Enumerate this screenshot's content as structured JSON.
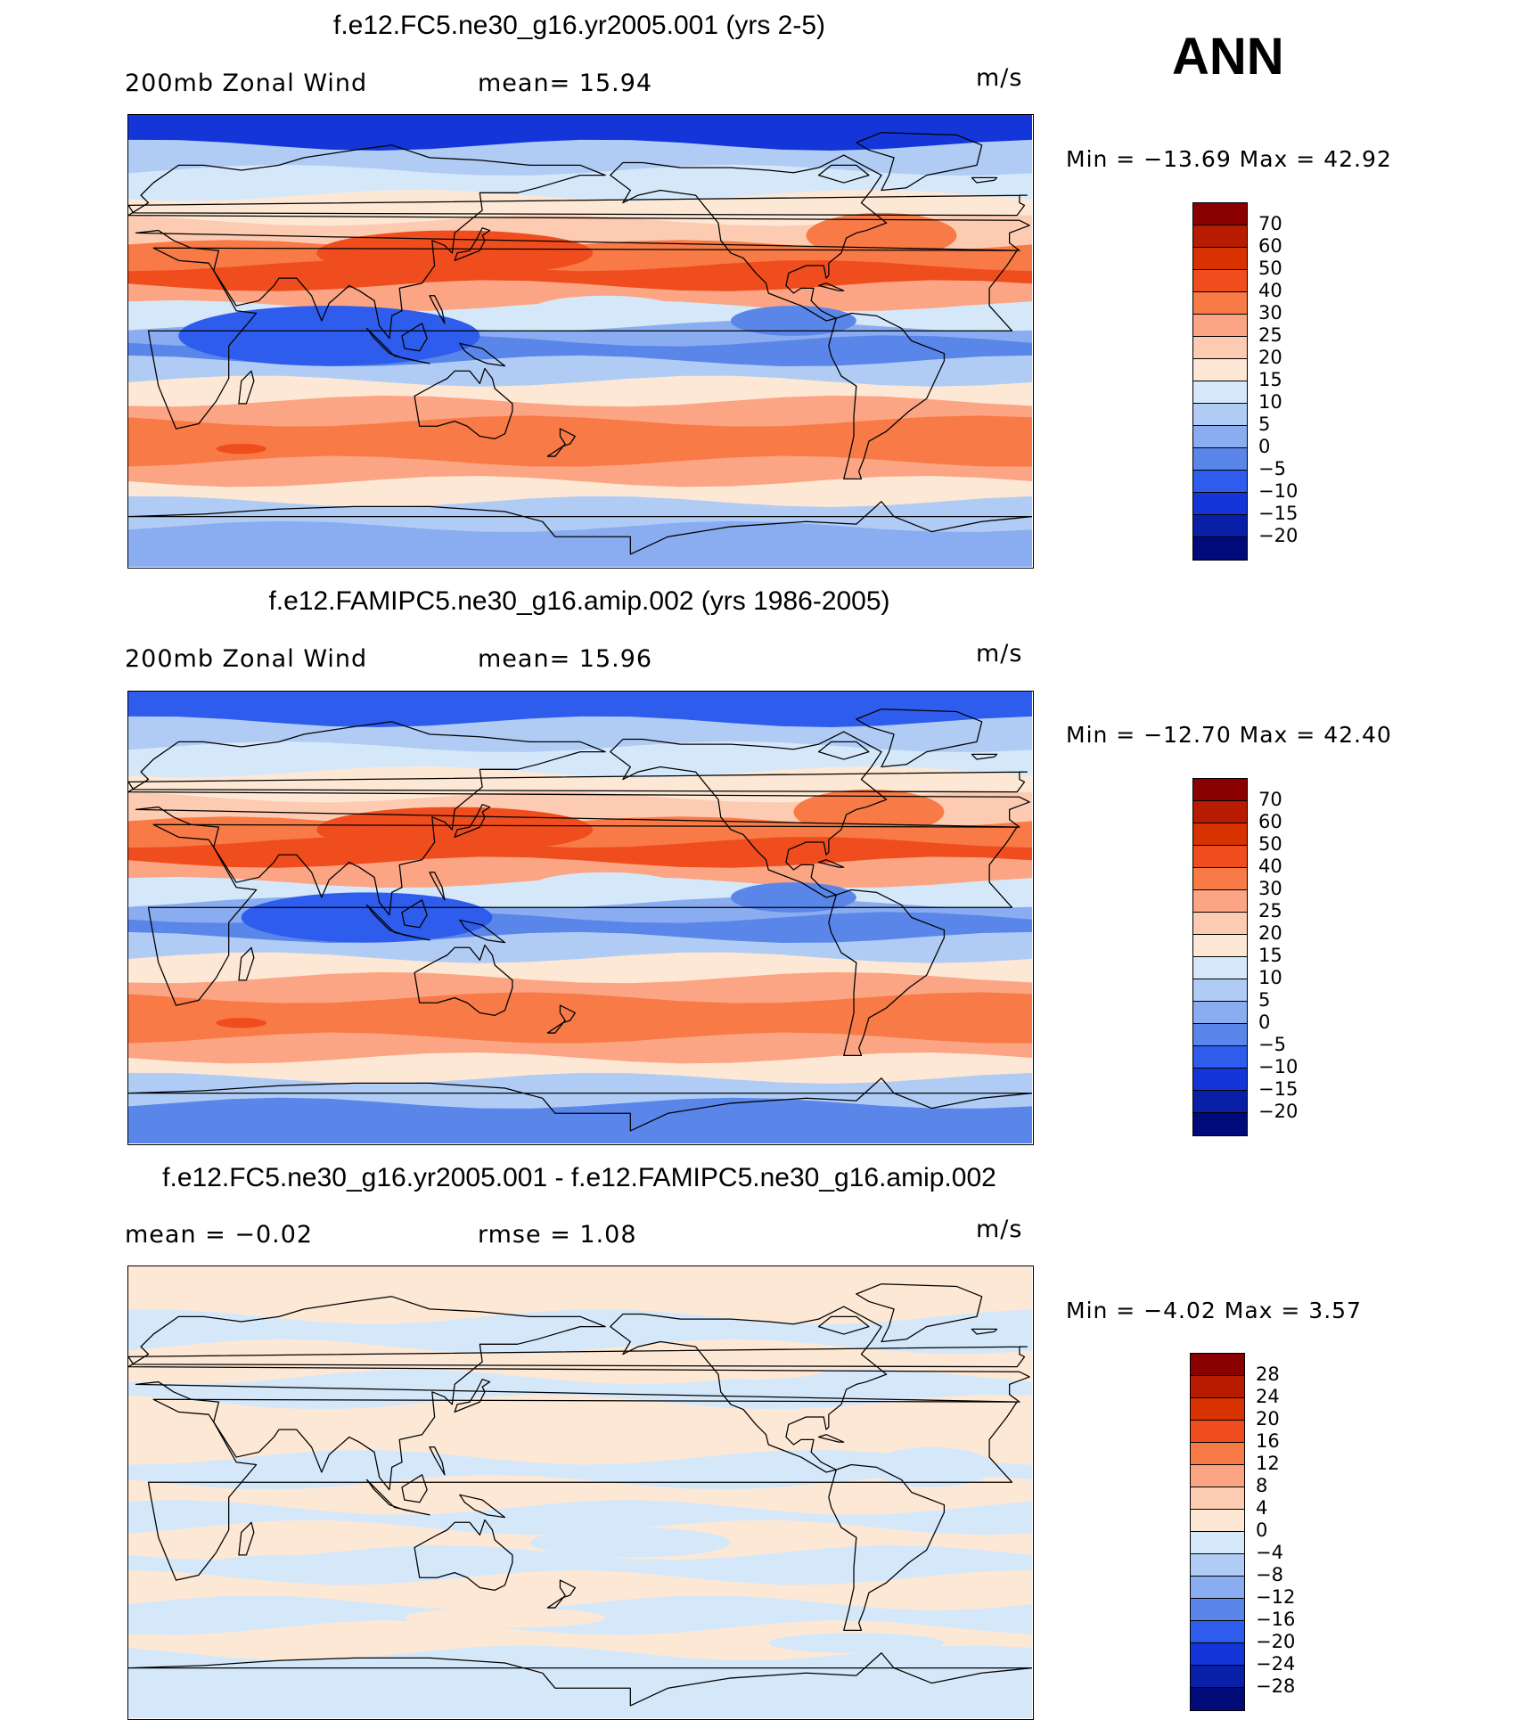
{
  "season": "ANN",
  "units": "m/s",
  "panels": [
    {
      "title": "f.e12.FC5.ne30_g16.yr2005.001 (yrs 2-5)",
      "left_text": "200mb Zonal Wind",
      "mid_text": "mean=   15.94",
      "minmax": "Min  =  −13.69  Max  =    42.92",
      "zones": [
        {
          "lat": 90,
          "t": 0
        },
        {
          "lat": 78,
          "t": 4
        },
        {
          "lat": 68,
          "t": 5
        },
        {
          "lat": 58,
          "t": 6
        },
        {
          "lat": 48,
          "t": 7
        },
        {
          "lat": 38,
          "t": 9
        },
        {
          "lat": 30,
          "t": 10
        },
        {
          "lat": 22,
          "t": 8
        },
        {
          "lat": 14,
          "t": 5
        },
        {
          "lat": 6,
          "t": 3
        },
        {
          "lat": 0,
          "t": 2
        },
        {
          "lat": -8,
          "t": 4
        },
        {
          "lat": -16,
          "t": 6
        },
        {
          "lat": -24,
          "t": 8
        },
        {
          "lat": -32,
          "t": 9
        },
        {
          "lat": -40,
          "t": 9
        },
        {
          "lat": -48,
          "t": 8
        },
        {
          "lat": -56,
          "t": 6
        },
        {
          "lat": -64,
          "t": 4
        },
        {
          "lat": -74,
          "t": 3
        },
        {
          "lat": -90,
          "t": 4
        }
      ],
      "anomalies": [
        {
          "lon": 130,
          "lat": 35,
          "rx": 55,
          "ry": 9,
          "t": 10
        },
        {
          "lon": 300,
          "lat": 42,
          "rx": 30,
          "ry": 9,
          "t": 9
        },
        {
          "lon": 80,
          "lat": 2,
          "rx": 60,
          "ry": 12,
          "t": 1
        },
        {
          "lon": 265,
          "lat": 8,
          "rx": 25,
          "ry": 6,
          "t": 2
        },
        {
          "lon": 45,
          "lat": -43,
          "rx": 10,
          "ry": 2,
          "t": 10
        },
        {
          "lon": 190,
          "lat": 12,
          "rx": 30,
          "ry": 6,
          "t": 5
        }
      ],
      "colorbar_labels": [
        "70",
        "60",
        "50",
        "40",
        "30",
        "25",
        "20",
        "15",
        "10",
        "5",
        "0",
        "−5",
        "−10",
        "−15",
        "−20"
      ],
      "colorbar_colors": [
        "#8b0000",
        "#b71c00",
        "#d83200",
        "#f04d1e",
        "#f87a46",
        "#fba584",
        "#fdcbb2",
        "#fde8d5",
        "#d5e8fa",
        "#b0ccf5",
        "#8aacf0",
        "#5a86ea",
        "#2e5cec",
        "#1436d8",
        "#0a1fa8",
        "#000b79"
      ]
    },
    {
      "title": "f.e12.FAMIPC5.ne30_g16.amip.002 (yrs 1986-2005)",
      "left_text": "200mb Zonal Wind",
      "mid_text": "mean=   15.96",
      "minmax": "Min  =  −12.70  Max  =    42.40",
      "zones": [
        {
          "lat": 90,
          "t": 1
        },
        {
          "lat": 78,
          "t": 4
        },
        {
          "lat": 68,
          "t": 5
        },
        {
          "lat": 58,
          "t": 6
        },
        {
          "lat": 48,
          "t": 7
        },
        {
          "lat": 38,
          "t": 9
        },
        {
          "lat": 30,
          "t": 10
        },
        {
          "lat": 22,
          "t": 8
        },
        {
          "lat": 14,
          "t": 5
        },
        {
          "lat": 6,
          "t": 3
        },
        {
          "lat": 0,
          "t": 2
        },
        {
          "lat": -8,
          "t": 4
        },
        {
          "lat": -16,
          "t": 6
        },
        {
          "lat": -24,
          "t": 8
        },
        {
          "lat": -32,
          "t": 9
        },
        {
          "lat": -40,
          "t": 9
        },
        {
          "lat": -48,
          "t": 8
        },
        {
          "lat": -56,
          "t": 6
        },
        {
          "lat": -64,
          "t": 4
        },
        {
          "lat": -74,
          "t": 2
        },
        {
          "lat": -90,
          "t": 3
        }
      ],
      "anomalies": [
        {
          "lon": 130,
          "lat": 35,
          "rx": 55,
          "ry": 9,
          "t": 10
        },
        {
          "lon": 295,
          "lat": 42,
          "rx": 30,
          "ry": 9,
          "t": 9
        },
        {
          "lon": 95,
          "lat": 0,
          "rx": 50,
          "ry": 10,
          "t": 1
        },
        {
          "lon": 265,
          "lat": 8,
          "rx": 25,
          "ry": 6,
          "t": 2
        },
        {
          "lon": 45,
          "lat": -42,
          "rx": 10,
          "ry": 2,
          "t": 10
        },
        {
          "lon": 190,
          "lat": 12,
          "rx": 30,
          "ry": 6,
          "t": 5
        }
      ],
      "colorbar_labels": [
        "70",
        "60",
        "50",
        "40",
        "30",
        "25",
        "20",
        "15",
        "10",
        "5",
        "0",
        "−5",
        "−10",
        "−15",
        "−20"
      ],
      "colorbar_colors": [
        "#8b0000",
        "#b71c00",
        "#d83200",
        "#f04d1e",
        "#f87a46",
        "#fba584",
        "#fdcbb2",
        "#fde8d5",
        "#d5e8fa",
        "#b0ccf5",
        "#8aacf0",
        "#5a86ea",
        "#2e5cec",
        "#1436d8",
        "#0a1fa8",
        "#000b79"
      ]
    },
    {
      "title": "f.e12.FC5.ne30_g16.yr2005.001 - f.e12.FAMIPC5.ne30_g16.amip.002",
      "left_text": "mean  =    −0.02",
      "mid_text": "rmse  =      1.08",
      "minmax": "Min  =    −4.02  Max  =      3.57",
      "zones": [
        {
          "lat": 90,
          "t": 1
        },
        {
          "lat": 70,
          "t": 0
        },
        {
          "lat": 58,
          "t": 1
        },
        {
          "lat": 46,
          "t": 0
        },
        {
          "lat": 36,
          "t": 1
        },
        {
          "lat": 24,
          "t": 1
        },
        {
          "lat": 14,
          "t": 0
        },
        {
          "lat": 4,
          "t": 1
        },
        {
          "lat": -6,
          "t": 0
        },
        {
          "lat": -14,
          "t": 1
        },
        {
          "lat": -24,
          "t": 0
        },
        {
          "lat": -34,
          "t": 1
        },
        {
          "lat": -44,
          "t": 0
        },
        {
          "lat": -54,
          "t": 1
        },
        {
          "lat": -64,
          "t": 0
        },
        {
          "lat": -90,
          "t": 1
        }
      ],
      "anomalies": [],
      "colorbar_labels": [
        "28",
        "24",
        "20",
        "16",
        "12",
        "8",
        "4",
        "0",
        "−4",
        "−8",
        "−12",
        "−16",
        "−20",
        "−24",
        "−28"
      ],
      "colorbar_colors": [
        "#8b0000",
        "#b71c00",
        "#d83200",
        "#f04d1e",
        "#f87a46",
        "#fba584",
        "#fdcbb2",
        "#fde8d5",
        "#d5e8fa",
        "#b0ccf5",
        "#8aacf0",
        "#5a86ea",
        "#2e5cec",
        "#1436d8",
        "#0a1fa8",
        "#000b79"
      ]
    }
  ],
  "field_palette": [
    "#1436d8",
    "#2e5cec",
    "#5a86ea",
    "#8aacf0",
    "#b0ccf5",
    "#d5e8fa",
    "#fde8d5",
    "#fdcbb2",
    "#fba584",
    "#f87a46",
    "#f04d1e"
  ],
  "diff_palette": [
    "#d5e8fa",
    "#fde8d5"
  ]
}
